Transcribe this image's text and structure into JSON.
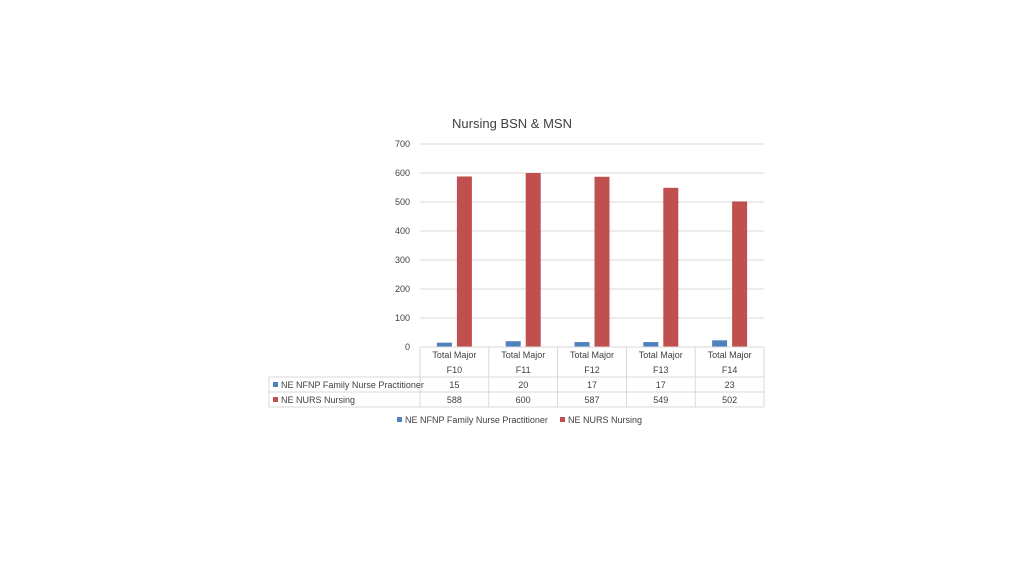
{
  "chart_data": {
    "type": "bar",
    "title": "Nursing BSN & MSN",
    "categories": [
      [
        "Total Major",
        "F10"
      ],
      [
        "Total Major",
        "F11"
      ],
      [
        "Total Major",
        "F12"
      ],
      [
        "Total Major",
        "F13"
      ],
      [
        "Total Major",
        "F14"
      ]
    ],
    "series": [
      {
        "name": "NE NFNP Family Nurse Practitioner",
        "color": "#4f81bd",
        "values": [
          15,
          20,
          17,
          17,
          23
        ]
      },
      {
        "name": "NE NURS Nursing",
        "color": "#c0504d",
        "values": [
          588,
          600,
          587,
          549,
          502
        ]
      }
    ],
    "ylim": [
      0,
      700
    ],
    "yticks": [
      0,
      100,
      200,
      300,
      400,
      500,
      600,
      700
    ],
    "grid": true,
    "data_table": true,
    "legend": "bottom"
  }
}
